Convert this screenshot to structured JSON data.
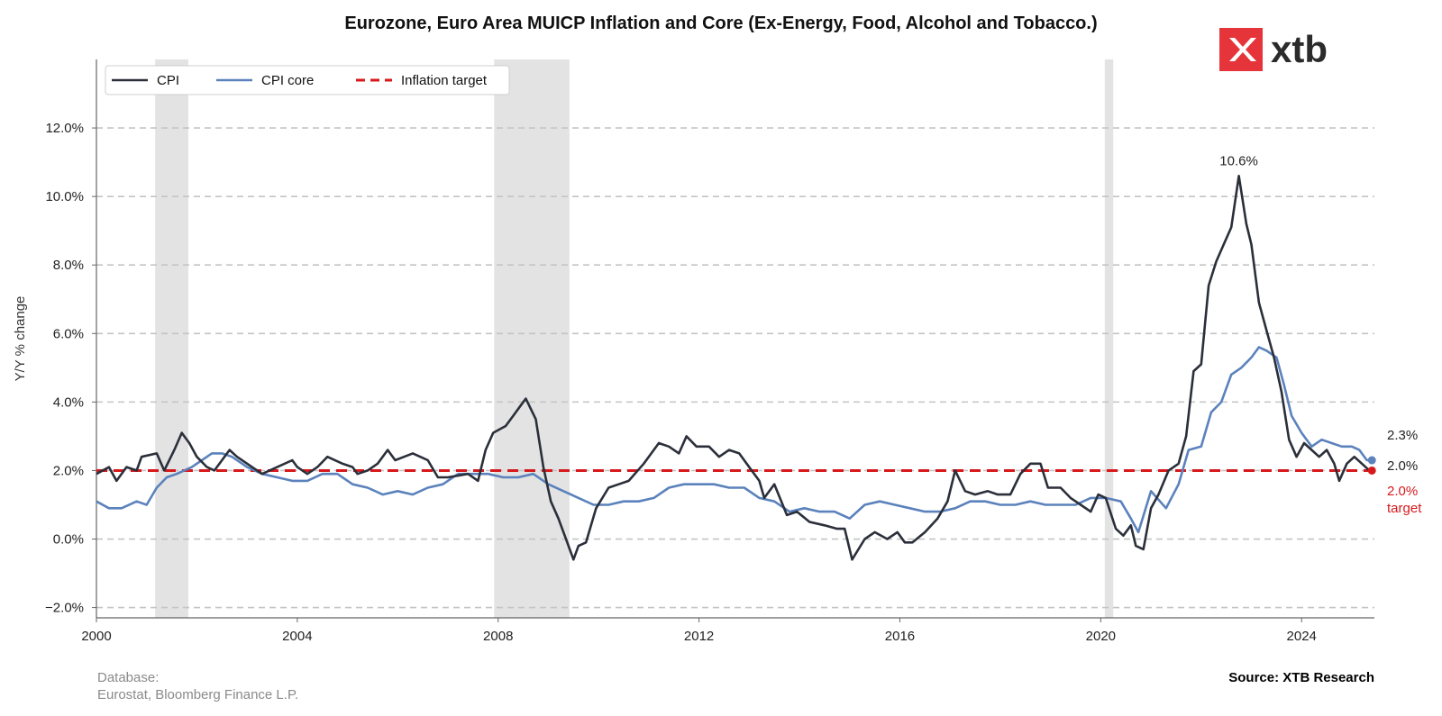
{
  "header": {
    "title": "Eurozone, Euro Area MUICP Inflation and Core (Ex-Energy, Food, Alcohol and Tobacco.)",
    "logo_text": "xtb"
  },
  "footer": {
    "database_label": "Database:",
    "database_sources": "Eurostat, Bloomberg Finance L.P.",
    "source": "Source: XTB Research"
  },
  "colors": {
    "cpi": "#2b2f3a",
    "cpi_core": "#5b82bc",
    "target": "#d7191c",
    "recession": "#e3e3e3",
    "grid": "#c4c4c4",
    "logo_red": "#e6353a"
  },
  "chart_data": {
    "type": "line",
    "title": "Eurozone, Euro Area MUICP Inflation and Core (Ex-Energy, Food, Alcohol and Tobacco.)",
    "xlabel": "",
    "ylabel": "Y/Y % change",
    "xlim": [
      2000,
      2025.45
    ],
    "ylim": [
      -2.3,
      14.0
    ],
    "x_ticks": [
      2000,
      2004,
      2008,
      2012,
      2016,
      2020,
      2024
    ],
    "x_tick_labels": [
      "2000",
      "2004",
      "2008",
      "2012",
      "2016",
      "2020",
      "2024"
    ],
    "y_ticks": [
      -2,
      0,
      2,
      4,
      6,
      8,
      10,
      12
    ],
    "y_tick_labels": [
      "−2.0%",
      "0.0%",
      "2.0%",
      "4.0%",
      "6.0%",
      "8.0%",
      "10.0%",
      "12.0%"
    ],
    "grid": "horizontal dashed",
    "legend": {
      "position": "top-left",
      "entries": [
        {
          "name": "CPI",
          "style": "solid"
        },
        {
          "name": "CPI core",
          "style": "solid"
        },
        {
          "name": "Inflation target",
          "style": "dashed"
        }
      ]
    },
    "recessions": [
      [
        2001.17,
        2001.83
      ],
      [
        2007.92,
        2009.42
      ],
      [
        2020.08,
        2020.25
      ]
    ],
    "target_value": 2.0,
    "series": [
      {
        "name": "CPI",
        "points": [
          [
            2000.0,
            1.9
          ],
          [
            2000.25,
            2.1
          ],
          [
            2000.4,
            1.7
          ],
          [
            2000.6,
            2.1
          ],
          [
            2000.8,
            2.0
          ],
          [
            2000.9,
            2.4
          ],
          [
            2001.2,
            2.5
          ],
          [
            2001.35,
            2.0
          ],
          [
            2001.55,
            2.6
          ],
          [
            2001.7,
            3.1
          ],
          [
            2001.85,
            2.8
          ],
          [
            2002.0,
            2.4
          ],
          [
            2002.2,
            2.1
          ],
          [
            2002.35,
            2.0
          ],
          [
            2002.5,
            2.3
          ],
          [
            2002.65,
            2.6
          ],
          [
            2002.8,
            2.4
          ],
          [
            2003.0,
            2.2
          ],
          [
            2003.3,
            1.9
          ],
          [
            2003.6,
            2.1
          ],
          [
            2003.9,
            2.3
          ],
          [
            2004.0,
            2.1
          ],
          [
            2004.2,
            1.9
          ],
          [
            2004.4,
            2.1
          ],
          [
            2004.6,
            2.4
          ],
          [
            2004.9,
            2.2
          ],
          [
            2005.1,
            2.1
          ],
          [
            2005.2,
            1.9
          ],
          [
            2005.4,
            2.0
          ],
          [
            2005.6,
            2.2
          ],
          [
            2005.8,
            2.6
          ],
          [
            2005.95,
            2.3
          ],
          [
            2006.3,
            2.5
          ],
          [
            2006.6,
            2.3
          ],
          [
            2006.8,
            1.8
          ],
          [
            2007.0,
            1.8
          ],
          [
            2007.4,
            1.9
          ],
          [
            2007.6,
            1.7
          ],
          [
            2007.75,
            2.6
          ],
          [
            2007.9,
            3.1
          ],
          [
            2008.15,
            3.3
          ],
          [
            2008.3,
            3.6
          ],
          [
            2008.45,
            3.9
          ],
          [
            2008.55,
            4.1
          ],
          [
            2008.75,
            3.5
          ],
          [
            2008.9,
            2.1
          ],
          [
            2009.05,
            1.1
          ],
          [
            2009.2,
            0.6
          ],
          [
            2009.35,
            0.0
          ],
          [
            2009.5,
            -0.6
          ],
          [
            2009.6,
            -0.2
          ],
          [
            2009.75,
            -0.1
          ],
          [
            2009.95,
            0.9
          ],
          [
            2010.2,
            1.5
          ],
          [
            2010.4,
            1.6
          ],
          [
            2010.6,
            1.7
          ],
          [
            2010.9,
            2.2
          ],
          [
            2011.2,
            2.8
          ],
          [
            2011.4,
            2.7
          ],
          [
            2011.6,
            2.5
          ],
          [
            2011.75,
            3.0
          ],
          [
            2011.95,
            2.7
          ],
          [
            2012.2,
            2.7
          ],
          [
            2012.4,
            2.4
          ],
          [
            2012.6,
            2.6
          ],
          [
            2012.8,
            2.5
          ],
          [
            2012.95,
            2.2
          ],
          [
            2013.2,
            1.7
          ],
          [
            2013.3,
            1.2
          ],
          [
            2013.5,
            1.6
          ],
          [
            2013.75,
            0.7
          ],
          [
            2013.95,
            0.8
          ],
          [
            2014.2,
            0.5
          ],
          [
            2014.5,
            0.4
          ],
          [
            2014.75,
            0.3
          ],
          [
            2014.9,
            0.3
          ],
          [
            2015.05,
            -0.6
          ],
          [
            2015.3,
            0.0
          ],
          [
            2015.5,
            0.2
          ],
          [
            2015.75,
            0.0
          ],
          [
            2015.95,
            0.2
          ],
          [
            2016.1,
            -0.1
          ],
          [
            2016.25,
            -0.1
          ],
          [
            2016.5,
            0.2
          ],
          [
            2016.75,
            0.6
          ],
          [
            2016.95,
            1.1
          ],
          [
            2017.1,
            2.0
          ],
          [
            2017.3,
            1.4
          ],
          [
            2017.5,
            1.3
          ],
          [
            2017.75,
            1.4
          ],
          [
            2017.95,
            1.3
          ],
          [
            2018.2,
            1.3
          ],
          [
            2018.4,
            1.9
          ],
          [
            2018.6,
            2.2
          ],
          [
            2018.8,
            2.2
          ],
          [
            2018.95,
            1.5
          ],
          [
            2019.2,
            1.5
          ],
          [
            2019.4,
            1.2
          ],
          [
            2019.6,
            1.0
          ],
          [
            2019.8,
            0.8
          ],
          [
            2019.95,
            1.3
          ],
          [
            2020.1,
            1.2
          ],
          [
            2020.3,
            0.3
          ],
          [
            2020.45,
            0.1
          ],
          [
            2020.6,
            0.4
          ],
          [
            2020.7,
            -0.2
          ],
          [
            2020.85,
            -0.3
          ],
          [
            2021.0,
            0.9
          ],
          [
            2021.15,
            1.3
          ],
          [
            2021.35,
            2.0
          ],
          [
            2021.55,
            2.2
          ],
          [
            2021.7,
            3.0
          ],
          [
            2021.85,
            4.9
          ],
          [
            2022.0,
            5.1
          ],
          [
            2022.15,
            7.4
          ],
          [
            2022.3,
            8.1
          ],
          [
            2022.45,
            8.6
          ],
          [
            2022.6,
            9.1
          ],
          [
            2022.75,
            10.6
          ],
          [
            2022.9,
            9.2
          ],
          [
            2023.0,
            8.6
          ],
          [
            2023.15,
            6.9
          ],
          [
            2023.3,
            6.1
          ],
          [
            2023.45,
            5.3
          ],
          [
            2023.6,
            4.3
          ],
          [
            2023.75,
            2.9
          ],
          [
            2023.9,
            2.4
          ],
          [
            2024.05,
            2.8
          ],
          [
            2024.2,
            2.6
          ],
          [
            2024.35,
            2.4
          ],
          [
            2024.5,
            2.6
          ],
          [
            2024.65,
            2.2
          ],
          [
            2024.75,
            1.7
          ],
          [
            2024.9,
            2.2
          ],
          [
            2025.05,
            2.4
          ],
          [
            2025.2,
            2.2
          ],
          [
            2025.35,
            2.0
          ]
        ]
      },
      {
        "name": "CPI core",
        "points": [
          [
            2000.0,
            1.1
          ],
          [
            2000.25,
            0.9
          ],
          [
            2000.5,
            0.9
          ],
          [
            2000.8,
            1.1
          ],
          [
            2001.0,
            1.0
          ],
          [
            2001.2,
            1.5
          ],
          [
            2001.4,
            1.8
          ],
          [
            2001.6,
            1.9
          ],
          [
            2001.9,
            2.1
          ],
          [
            2002.1,
            2.3
          ],
          [
            2002.3,
            2.5
          ],
          [
            2002.5,
            2.5
          ],
          [
            2002.7,
            2.4
          ],
          [
            2003.0,
            2.1
          ],
          [
            2003.3,
            1.9
          ],
          [
            2003.6,
            1.8
          ],
          [
            2003.9,
            1.7
          ],
          [
            2004.2,
            1.7
          ],
          [
            2004.5,
            1.9
          ],
          [
            2004.8,
            1.9
          ],
          [
            2005.1,
            1.6
          ],
          [
            2005.4,
            1.5
          ],
          [
            2005.7,
            1.3
          ],
          [
            2006.0,
            1.4
          ],
          [
            2006.3,
            1.3
          ],
          [
            2006.6,
            1.5
          ],
          [
            2006.9,
            1.6
          ],
          [
            2007.2,
            1.9
          ],
          [
            2007.5,
            1.9
          ],
          [
            2007.8,
            1.9
          ],
          [
            2008.1,
            1.8
          ],
          [
            2008.4,
            1.8
          ],
          [
            2008.7,
            1.9
          ],
          [
            2009.0,
            1.6
          ],
          [
            2009.3,
            1.4
          ],
          [
            2009.6,
            1.2
          ],
          [
            2009.9,
            1.0
          ],
          [
            2010.2,
            1.0
          ],
          [
            2010.5,
            1.1
          ],
          [
            2010.8,
            1.1
          ],
          [
            2011.1,
            1.2
          ],
          [
            2011.4,
            1.5
          ],
          [
            2011.7,
            1.6
          ],
          [
            2012.0,
            1.6
          ],
          [
            2012.3,
            1.6
          ],
          [
            2012.6,
            1.5
          ],
          [
            2012.9,
            1.5
          ],
          [
            2013.2,
            1.2
          ],
          [
            2013.5,
            1.1
          ],
          [
            2013.8,
            0.8
          ],
          [
            2014.1,
            0.9
          ],
          [
            2014.4,
            0.8
          ],
          [
            2014.7,
            0.8
          ],
          [
            2015.0,
            0.6
          ],
          [
            2015.3,
            1.0
          ],
          [
            2015.6,
            1.1
          ],
          [
            2015.9,
            1.0
          ],
          [
            2016.2,
            0.9
          ],
          [
            2016.5,
            0.8
          ],
          [
            2016.8,
            0.8
          ],
          [
            2017.1,
            0.9
          ],
          [
            2017.4,
            1.1
          ],
          [
            2017.7,
            1.1
          ],
          [
            2018.0,
            1.0
          ],
          [
            2018.3,
            1.0
          ],
          [
            2018.6,
            1.1
          ],
          [
            2018.9,
            1.0
          ],
          [
            2019.2,
            1.0
          ],
          [
            2019.5,
            1.0
          ],
          [
            2019.8,
            1.2
          ],
          [
            2020.1,
            1.2
          ],
          [
            2020.4,
            1.1
          ],
          [
            2020.6,
            0.6
          ],
          [
            2020.75,
            0.2
          ],
          [
            2021.0,
            1.4
          ],
          [
            2021.3,
            0.9
          ],
          [
            2021.55,
            1.6
          ],
          [
            2021.75,
            2.6
          ],
          [
            2022.0,
            2.7
          ],
          [
            2022.2,
            3.7
          ],
          [
            2022.4,
            4.0
          ],
          [
            2022.6,
            4.8
          ],
          [
            2022.8,
            5.0
          ],
          [
            2023.0,
            5.3
          ],
          [
            2023.15,
            5.6
          ],
          [
            2023.3,
            5.5
          ],
          [
            2023.5,
            5.3
          ],
          [
            2023.65,
            4.5
          ],
          [
            2023.8,
            3.6
          ],
          [
            2024.0,
            3.1
          ],
          [
            2024.2,
            2.7
          ],
          [
            2024.4,
            2.9
          ],
          [
            2024.6,
            2.8
          ],
          [
            2024.8,
            2.7
          ],
          [
            2025.0,
            2.7
          ],
          [
            2025.15,
            2.6
          ],
          [
            2025.3,
            2.3
          ],
          [
            2025.4,
            2.3
          ]
        ]
      }
    ],
    "annotations": [
      {
        "label": "10.6%",
        "x": 2022.75,
        "y": 10.6
      },
      {
        "label": "2.3%",
        "series": "CPI core"
      },
      {
        "label": "2.0%",
        "series": "CPI"
      },
      {
        "label": "2.0%",
        "series": "Inflation target"
      },
      {
        "label": "target",
        "series": "Inflation target"
      }
    ]
  }
}
